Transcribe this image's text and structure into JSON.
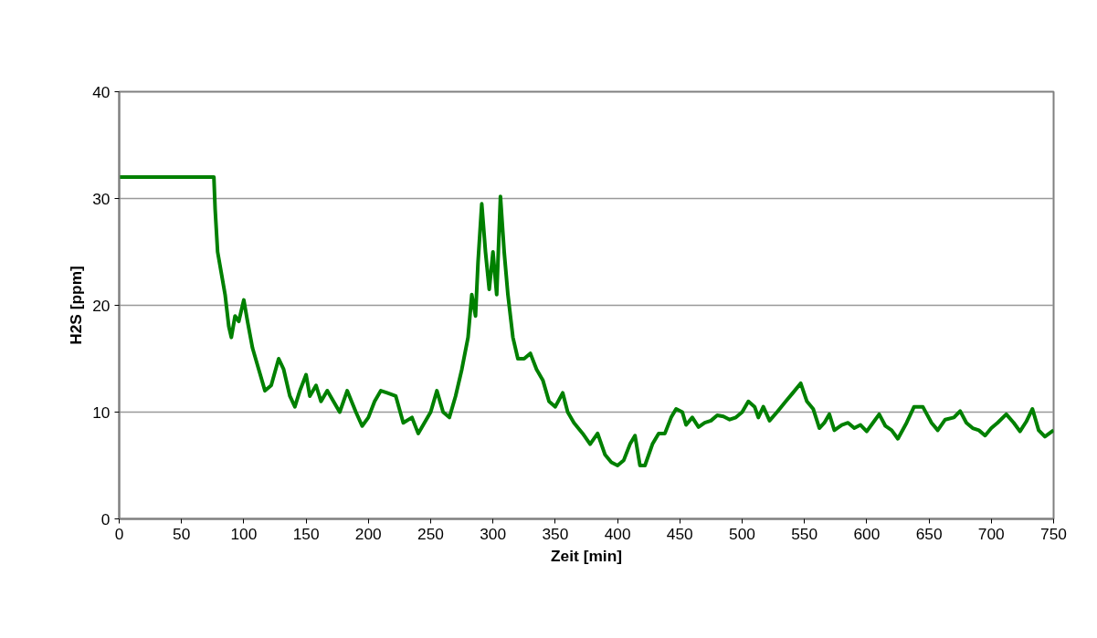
{
  "chart_data": {
    "type": "line",
    "xlabel": "Zeit [min]",
    "ylabel": "H2S [ppm]",
    "xlim": [
      0,
      750
    ],
    "ylim": [
      0,
      40
    ],
    "xticks": [
      0,
      50,
      100,
      150,
      200,
      250,
      300,
      350,
      400,
      450,
      500,
      550,
      600,
      650,
      700,
      750
    ],
    "yticks": [
      0,
      10,
      20,
      30,
      40
    ],
    "grid": "y",
    "marker": "none",
    "line_style": "solid",
    "series": [
      {
        "color": "#008000",
        "x": [
          0,
          76,
          77,
          79,
          82,
          85,
          88,
          90,
          93,
          96,
          100,
          103,
          107,
          112,
          117,
          122,
          128,
          132,
          137,
          141,
          145,
          150,
          153,
          158,
          162,
          167,
          172,
          177,
          183,
          190,
          195,
          200,
          205,
          210,
          215,
          222,
          228,
          235,
          240,
          245,
          250,
          255,
          260,
          265,
          270,
          275,
          280,
          283,
          286,
          288,
          291,
          294,
          297,
          300,
          303,
          306,
          309,
          312,
          316,
          320,
          325,
          330,
          335,
          340,
          345,
          350,
          356,
          360,
          365,
          372,
          378,
          384,
          390,
          395,
          400,
          405,
          410,
          414,
          418,
          422,
          428,
          433,
          438,
          443,
          447,
          452,
          455,
          460,
          465,
          470,
          475,
          480,
          485,
          490,
          495,
          500,
          505,
          510,
          513,
          517,
          522,
          528,
          535,
          540,
          547,
          552,
          557,
          562,
          566,
          570,
          574,
          580,
          585,
          590,
          595,
          600,
          605,
          610,
          615,
          620,
          625,
          632,
          638,
          645,
          652,
          657,
          663,
          670,
          675,
          680,
          685,
          690,
          695,
          700,
          705,
          712,
          718,
          723,
          728,
          733,
          738,
          743,
          750
        ],
        "values": [
          32,
          32,
          29,
          25,
          23,
          21,
          18,
          17,
          19,
          18.5,
          20.5,
          18.5,
          16,
          14,
          12,
          12.5,
          15,
          14,
          11.5,
          10.5,
          12,
          13.5,
          11.5,
          12.5,
          11,
          12,
          11,
          10,
          12,
          10,
          8.7,
          9.5,
          11,
          12,
          11.8,
          11.5,
          9,
          9.5,
          8,
          9,
          10,
          12,
          10,
          9.5,
          11.5,
          14,
          17,
          21,
          19,
          24,
          29.5,
          25,
          21.5,
          25,
          21,
          30.2,
          25,
          21,
          17,
          15,
          15,
          15.5,
          14,
          13,
          11,
          10.5,
          11.8,
          10,
          9,
          8,
          7,
          8,
          6,
          5.3,
          5,
          5.5,
          7,
          7.8,
          5,
          5,
          7,
          8,
          8,
          9.5,
          10.3,
          10,
          8.8,
          9.5,
          8.6,
          9,
          9.2,
          9.7,
          9.6,
          9.3,
          9.5,
          10,
          11,
          10.5,
          9.5,
          10.5,
          9.2,
          10,
          11,
          11.7,
          12.7,
          11,
          10.3,
          8.5,
          9,
          9.8,
          8.3,
          8.8,
          9,
          8.5,
          8.8,
          8.2,
          9,
          9.8,
          8.7,
          8.3,
          7.5,
          9,
          10.5,
          10.5,
          9,
          8.3,
          9.3,
          9.5,
          10.1,
          9,
          8.5,
          8.3,
          7.8,
          8.5,
          9,
          9.8,
          9,
          8.2,
          9.1,
          10.3,
          8.3,
          7.7,
          8.3
        ]
      }
    ]
  }
}
